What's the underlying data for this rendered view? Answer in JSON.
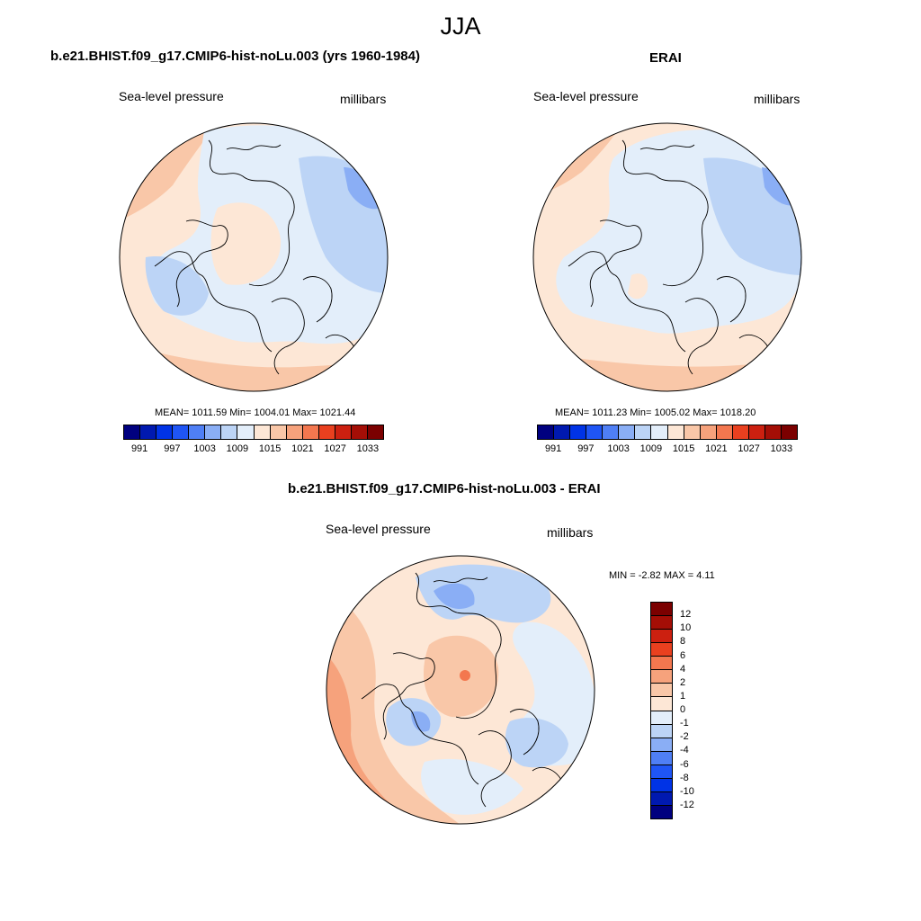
{
  "main_title": "JJA",
  "panels": [
    {
      "title": "b.e21.BHIST.f09_g17.CMIP6-hist-noLu.003 (yrs 1960-1984)",
      "variable": "Sea-level pressure",
      "units": "millibars",
      "stats": "MEAN= 1011.59  Min= 1004.01  Max= 1021.44"
    },
    {
      "title": "ERAI",
      "variable": "Sea-level pressure",
      "units": "millibars",
      "stats": "MEAN= 1011.23  Min= 1005.02  Max= 1018.20"
    },
    {
      "title": "b.e21.BHIST.f09_g17.CMIP6-hist-noLu.003 - ERAI",
      "variable": "Sea-level pressure",
      "units": "millibars",
      "stats": "MIN =  -2.82 MAX =   4.11"
    }
  ],
  "colorbar_abs": {
    "colors": [
      "#00007f",
      "#0019b0",
      "#0033e6",
      "#1f55f5",
      "#4f7ff5",
      "#8aaef5",
      "#bcd4f6",
      "#e3eefa",
      "#fde7d6",
      "#f9c7a8",
      "#f6a27c",
      "#f3774f",
      "#e9401f",
      "#cc2010",
      "#a40e06",
      "#7b0000"
    ],
    "tick_labels": [
      "991",
      "997",
      "1003",
      "1009",
      "1015",
      "1021",
      "1027",
      "1033"
    ]
  },
  "colorbar_diff": {
    "colors": [
      "#7b0000",
      "#a40e06",
      "#cc2010",
      "#e9401f",
      "#f3774f",
      "#f6a27c",
      "#f9c7a8",
      "#fde7d6",
      "#e3eefa",
      "#bcd4f6",
      "#8aaef5",
      "#4f7ff5",
      "#1f55f5",
      "#0033e6",
      "#0019b0",
      "#00007f"
    ],
    "tick_labels": [
      "12",
      "10",
      "8",
      "6",
      "4",
      "2",
      "1",
      "0",
      "-1",
      "-2",
      "-4",
      "-6",
      "-8",
      "-10",
      "-12"
    ]
  }
}
